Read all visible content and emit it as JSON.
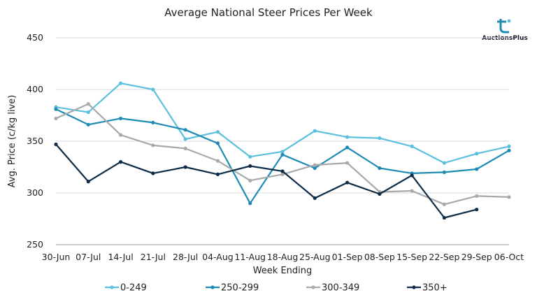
{
  "chart_data": {
    "type": "line",
    "title": "Average National Steer Prices Per Week",
    "xlabel": "Week Ending",
    "ylabel": "Avg. Price (c/kg live)",
    "ylim": [
      250,
      450
    ],
    "yticks": [
      250,
      300,
      350,
      400,
      450
    ],
    "grid": "horizontal",
    "legend_position": "bottom",
    "categories": [
      "30-Jun",
      "07-Jul",
      "14-Jul",
      "21-Jul",
      "28-Jul",
      "04-Aug",
      "11-Aug",
      "18-Aug",
      "25-Aug",
      "01-Sep",
      "08-Sep",
      "15-Sep",
      "22-Sep",
      "29-Sep",
      "06-Oct"
    ],
    "series": [
      {
        "name": "0-249",
        "color": "#5bc0de",
        "values": [
          383,
          378,
          406,
          400,
          352,
          359,
          335,
          340,
          360,
          354,
          353,
          345,
          329,
          338,
          345
        ]
      },
      {
        "name": "250-299",
        "color": "#1f8bb4",
        "values": [
          381,
          366,
          372,
          368,
          361,
          348,
          290,
          337,
          324,
          344,
          324,
          319,
          320,
          323,
          341
        ]
      },
      {
        "name": "300-349",
        "color": "#a8a9ab",
        "values": [
          372,
          386,
          356,
          346,
          343,
          331,
          312,
          318,
          327,
          329,
          301,
          302,
          289,
          297,
          296
        ]
      },
      {
        "name": "350+",
        "color": "#0e2c45",
        "values": [
          347,
          311,
          330,
          319,
          325,
          318,
          326,
          321,
          295,
          310,
          299,
          317,
          276,
          284,
          null
        ]
      }
    ]
  },
  "logo": {
    "text": "AuctionsPlus",
    "icon": "auctionsplus-logo-icon"
  }
}
